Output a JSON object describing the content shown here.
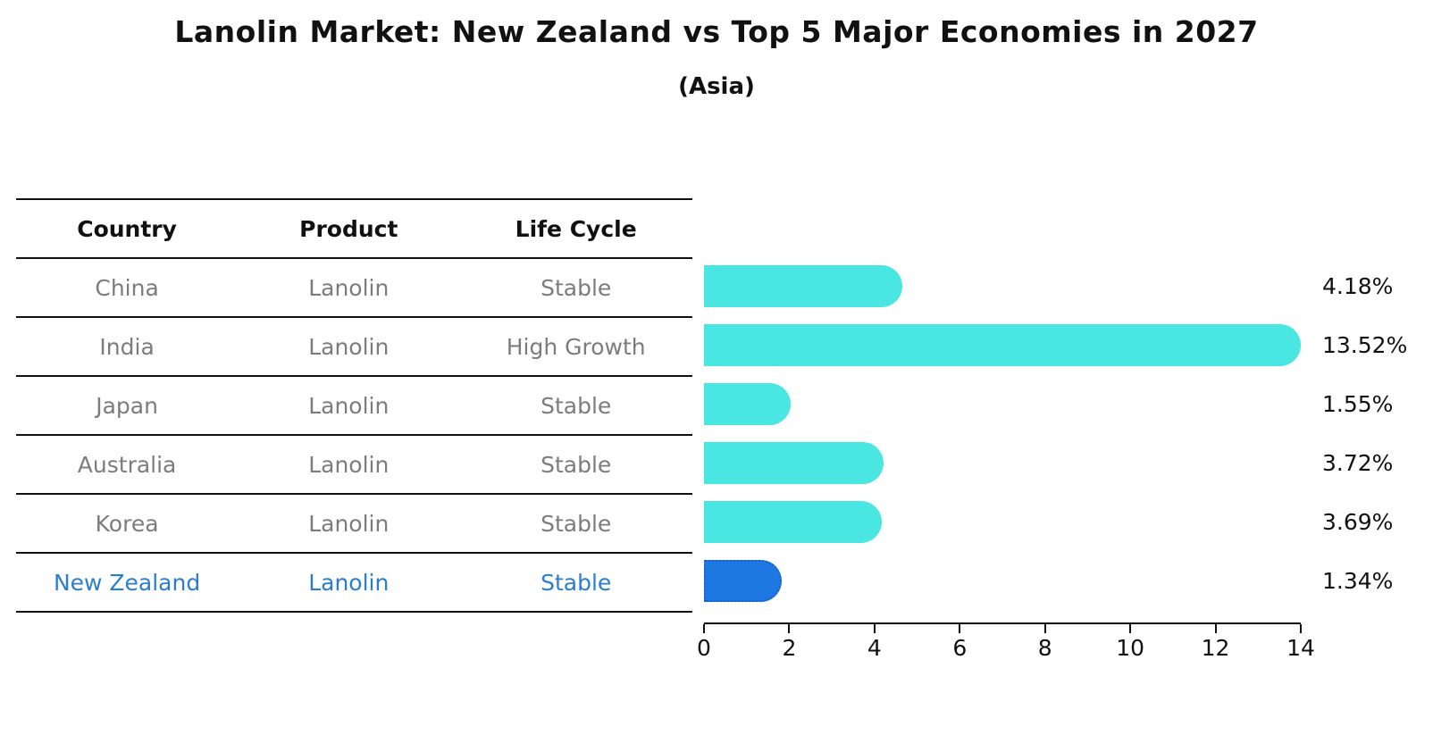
{
  "title": "Lanolin Market: New Zealand vs Top 5 Major Economies in 2027",
  "subtitle": "(Asia)",
  "colors": {
    "bar": "#4ae6e2",
    "highlight_bar": "#1e78e1",
    "highlight_bar_border": "#1a5fd0",
    "highlight_text": "#2a7dd1",
    "row_text": "#7c7c7c",
    "header_text": "#111111",
    "axis": "#111111"
  },
  "table": {
    "headers": [
      "Country",
      "Product",
      "Life Cycle"
    ],
    "rows": [
      {
        "country": "China",
        "product": "Lanolin",
        "life_cycle": "Stable",
        "highlight": false
      },
      {
        "country": "India",
        "product": "Lanolin",
        "life_cycle": "High Growth",
        "highlight": false
      },
      {
        "country": "Japan",
        "product": "Lanolin",
        "life_cycle": "Stable",
        "highlight": false
      },
      {
        "country": "Australia",
        "product": "Lanolin",
        "life_cycle": "Stable",
        "highlight": false
      },
      {
        "country": "Korea",
        "product": "Lanolin",
        "life_cycle": "Stable",
        "highlight": false
      },
      {
        "country": "New Zealand",
        "product": "Lanolin",
        "life_cycle": "Stable",
        "highlight": true
      }
    ]
  },
  "chart_data": {
    "type": "bar",
    "orientation": "horizontal",
    "title": "Lanolin Market: New Zealand vs Top 5 Major Economies in 2027",
    "subtitle": "(Asia)",
    "categories": [
      "China",
      "India",
      "Japan",
      "Australia",
      "Korea",
      "New Zealand"
    ],
    "values": [
      4.18,
      13.52,
      1.55,
      3.72,
      3.69,
      1.34
    ],
    "value_labels": [
      "4.18%",
      "13.52%",
      "1.55%",
      "3.72%",
      "3.69%",
      "1.34%"
    ],
    "highlight_category": "New Zealand",
    "xlim": [
      0,
      14
    ],
    "x_ticks": [
      "0",
      "2",
      "4",
      "6",
      "8",
      "10",
      "12",
      "14"
    ],
    "grid": false,
    "legend": "none"
  }
}
